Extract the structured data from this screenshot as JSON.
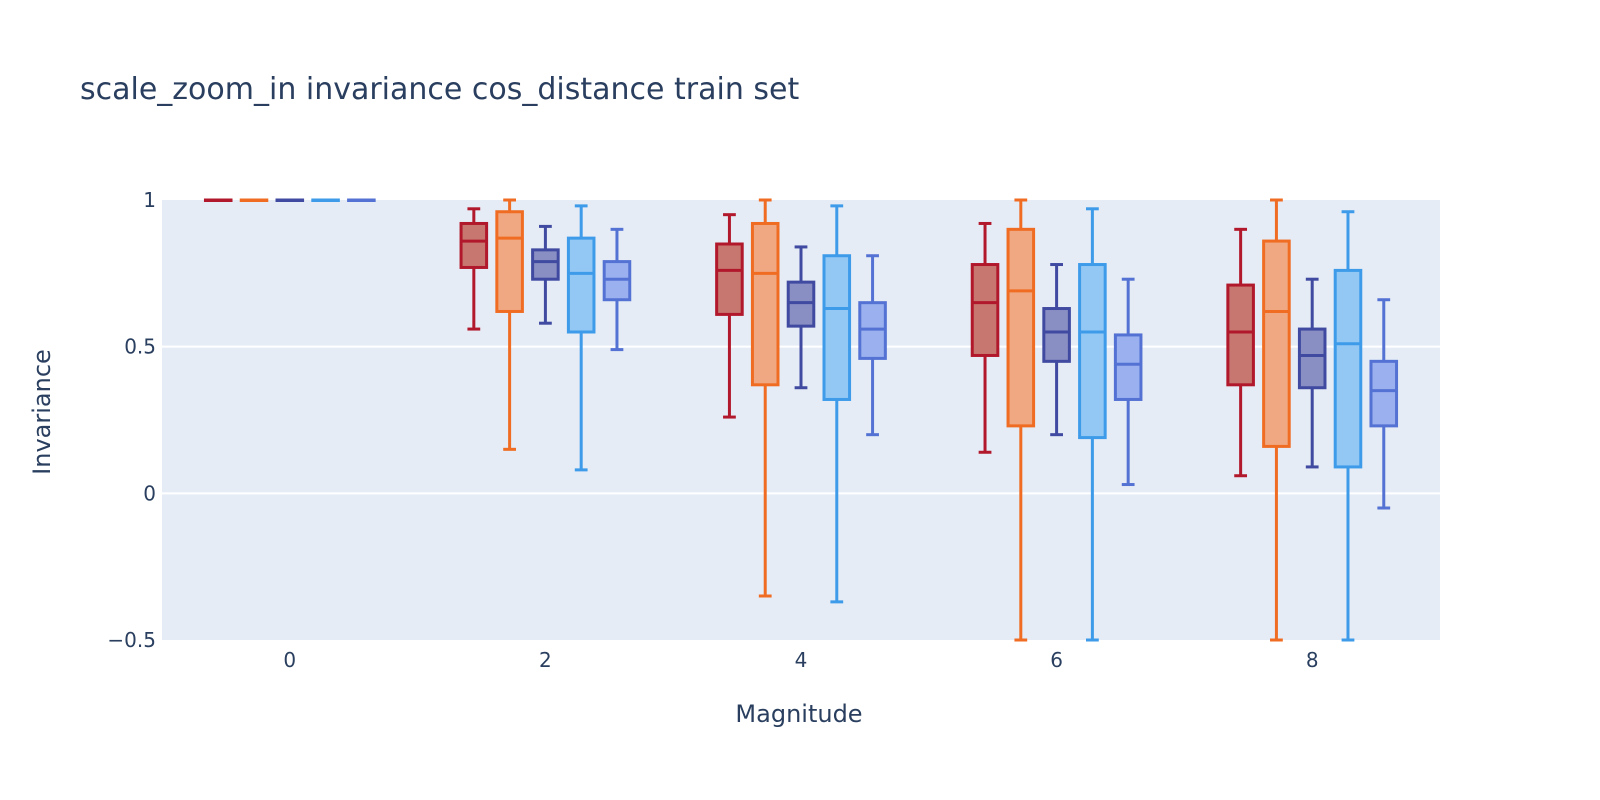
{
  "chart_data": {
    "type": "box",
    "title": "scale_zoom_in invariance cos_distance train set",
    "xlabel": "Magnitude",
    "ylabel": "Invariance",
    "xlim": [
      -1,
      9
    ],
    "ylim": [
      -0.5,
      1
    ],
    "x_ticks": [
      0,
      2,
      4,
      6,
      8
    ],
    "x_tick_labels": [
      "0",
      "2",
      "4",
      "6",
      "8"
    ],
    "y_ticks": [
      -0.5,
      0,
      0.5,
      1
    ],
    "y_tick_labels": [
      "−0.5",
      "0",
      "0.5",
      "1"
    ],
    "grid": true,
    "legend": "none",
    "offsets": [
      -0.56,
      -0.28,
      0,
      0.28,
      0.56
    ],
    "box_width": 0.2,
    "series": [
      {
        "color": "#b2182b",
        "fill": "#c7776f",
        "boxes": [
          {
            "x": 0,
            "min": 1,
            "q1": 1,
            "median": 1,
            "q3": 1,
            "max": 1
          },
          {
            "x": 2,
            "min": 0.56,
            "q1": 0.77,
            "median": 0.86,
            "q3": 0.92,
            "max": 0.97
          },
          {
            "x": 4,
            "min": 0.26,
            "q1": 0.61,
            "median": 0.76,
            "q3": 0.85,
            "max": 0.95
          },
          {
            "x": 6,
            "min": 0.14,
            "q1": 0.47,
            "median": 0.65,
            "q3": 0.78,
            "max": 0.92
          },
          {
            "x": 8,
            "min": 0.06,
            "q1": 0.37,
            "median": 0.55,
            "q3": 0.71,
            "max": 0.9
          }
        ]
      },
      {
        "color": "#ef6c22",
        "fill": "#f0a883",
        "boxes": [
          {
            "x": 0,
            "min": 1,
            "q1": 1,
            "median": 1,
            "q3": 1,
            "max": 1
          },
          {
            "x": 2,
            "min": 0.15,
            "q1": 0.62,
            "median": 0.87,
            "q3": 0.96,
            "max": 1
          },
          {
            "x": 4,
            "min": -0.35,
            "q1": 0.37,
            "median": 0.75,
            "q3": 0.92,
            "max": 1
          },
          {
            "x": 6,
            "min": -0.5,
            "q1": 0.23,
            "median": 0.69,
            "q3": 0.9,
            "max": 1
          },
          {
            "x": 8,
            "min": -0.5,
            "q1": 0.16,
            "median": 0.62,
            "q3": 0.86,
            "max": 1
          }
        ]
      },
      {
        "color": "#3f4aa0",
        "fill": "#8a8fc3",
        "boxes": [
          {
            "x": 0,
            "min": 1,
            "q1": 1,
            "median": 1,
            "q3": 1,
            "max": 1
          },
          {
            "x": 2,
            "min": 0.58,
            "q1": 0.73,
            "median": 0.79,
            "q3": 0.83,
            "max": 0.91
          },
          {
            "x": 4,
            "min": 0.36,
            "q1": 0.57,
            "median": 0.65,
            "q3": 0.72,
            "max": 0.84
          },
          {
            "x": 6,
            "min": 0.2,
            "q1": 0.45,
            "median": 0.55,
            "q3": 0.63,
            "max": 0.78
          },
          {
            "x": 8,
            "min": 0.09,
            "q1": 0.36,
            "median": 0.47,
            "q3": 0.56,
            "max": 0.73
          }
        ]
      },
      {
        "color": "#3d9be9",
        "fill": "#93c8f5",
        "boxes": [
          {
            "x": 0,
            "min": 1,
            "q1": 1,
            "median": 1,
            "q3": 1,
            "max": 1
          },
          {
            "x": 2,
            "min": 0.08,
            "q1": 0.55,
            "median": 0.75,
            "q3": 0.87,
            "max": 0.98
          },
          {
            "x": 4,
            "min": -0.37,
            "q1": 0.32,
            "median": 0.63,
            "q3": 0.81,
            "max": 0.98
          },
          {
            "x": 6,
            "min": -0.5,
            "q1": 0.19,
            "median": 0.55,
            "q3": 0.78,
            "max": 0.97
          },
          {
            "x": 8,
            "min": -0.5,
            "q1": 0.09,
            "median": 0.51,
            "q3": 0.76,
            "max": 0.96
          }
        ]
      },
      {
        "color": "#5472d3",
        "fill": "#9ab0ef",
        "boxes": [
          {
            "x": 0,
            "min": 1,
            "q1": 1,
            "median": 1,
            "q3": 1,
            "max": 1
          },
          {
            "x": 2,
            "min": 0.49,
            "q1": 0.66,
            "median": 0.73,
            "q3": 0.79,
            "max": 0.9
          },
          {
            "x": 4,
            "min": 0.2,
            "q1": 0.46,
            "median": 0.56,
            "q3": 0.65,
            "max": 0.81
          },
          {
            "x": 6,
            "min": 0.03,
            "q1": 0.32,
            "median": 0.44,
            "q3": 0.54,
            "max": 0.73
          },
          {
            "x": 8,
            "min": -0.05,
            "q1": 0.23,
            "median": 0.35,
            "q3": 0.45,
            "max": 0.66
          }
        ]
      }
    ]
  },
  "colors": {
    "plot_bg": "#e5ecf6",
    "grid": "#ffffff",
    "text": "#2a3f5f"
  }
}
